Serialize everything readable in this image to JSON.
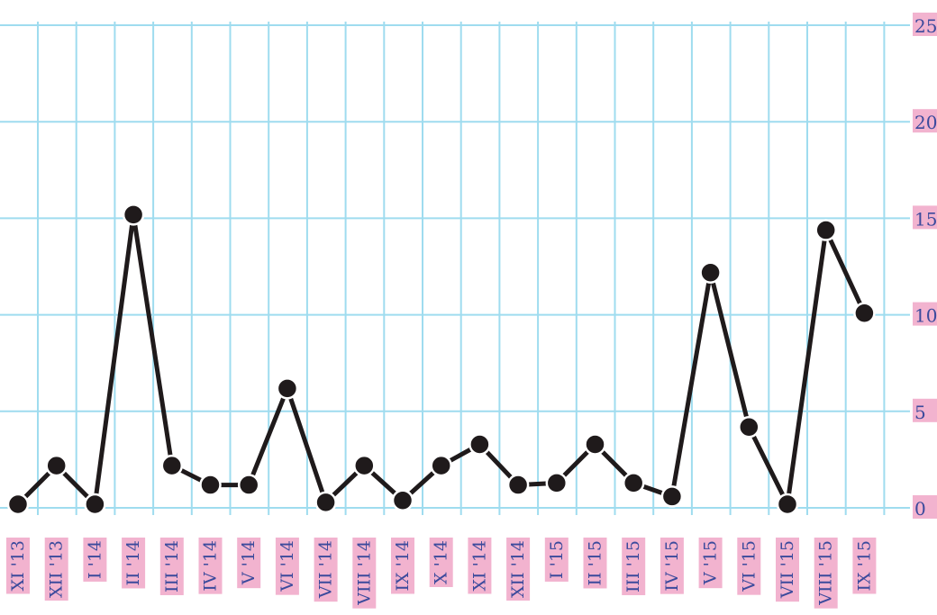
{
  "chart_data": {
    "type": "line",
    "title": "",
    "xlabel": "",
    "ylabel": "",
    "ylim": [
      0,
      25
    ],
    "y_ticks": [
      "0",
      "5",
      "10",
      "15",
      "20",
      "25"
    ],
    "y_axis_position": "right",
    "grid": true,
    "legend": "none",
    "categories": [
      "XI '13",
      "XII '13",
      "I '14",
      "II '14",
      "III '14",
      "IV '14",
      "V '14",
      "VI '14",
      "VII '14",
      "VIII '14",
      "IX '14",
      "X '14",
      "XI '14",
      "XII '14",
      "I '15",
      "II '15",
      "III '15",
      "IV '15",
      "V '15",
      "VI '15",
      "VII '15",
      "VIII '15",
      "IX '15"
    ],
    "values": [
      0,
      2,
      0,
      15,
      2,
      1,
      1,
      6,
      0.1,
      2,
      0.2,
      2,
      3.1,
      1,
      1.1,
      3.1,
      1.1,
      0.4,
      12,
      4,
      0,
      14.2,
      9.9
    ],
    "colors": {
      "grid": "#9fdcef",
      "line": "#1f1a1b",
      "label_bg": "#f2b3cf",
      "label_text": "#3b4a9c"
    }
  }
}
